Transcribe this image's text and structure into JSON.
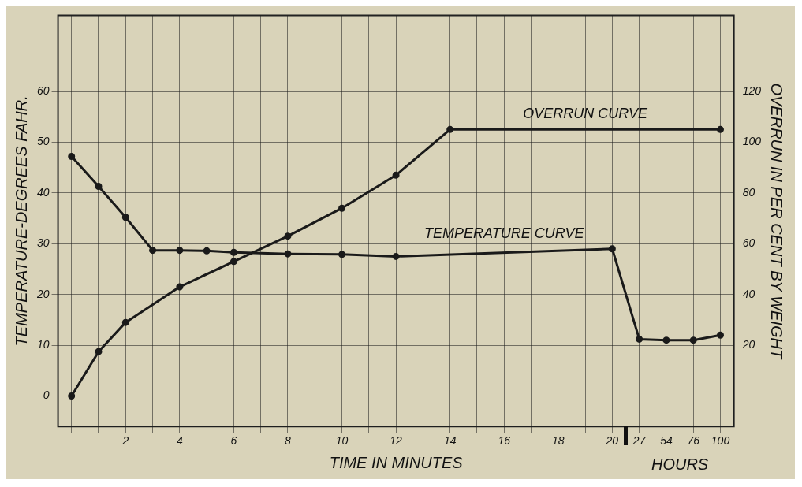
{
  "chart_data": {
    "type": "line",
    "xlabel": "TIME IN MINUTES",
    "ylabel": "TEMPERATURE-DEGREES FAHR.",
    "y2label": "OVERRUN IN PER CENT BY WEIGHT",
    "annotations": [
      "HOURS"
    ],
    "categories": [
      null,
      null,
      "2",
      null,
      "4",
      null,
      "6",
      null,
      "8",
      null,
      "10",
      null,
      "12",
      null,
      "14",
      null,
      "16",
      null,
      "18",
      null,
      "20",
      "27",
      "54",
      "76",
      "100"
    ],
    "ylim": [
      -6,
      75
    ],
    "yticks": [
      0,
      10,
      20,
      30,
      40,
      50,
      60
    ],
    "y2lim": [
      -12,
      150
    ],
    "y2ticks": [
      20,
      40,
      60,
      80,
      100,
      120
    ],
    "grid": true,
    "legend": false,
    "marker": "circle",
    "line_style": "solid",
    "series": [
      {
        "name": "TEMPERATURE CURVE",
        "color": "#1a1a1a",
        "values": [
          47.2,
          41.3,
          35.2,
          28.7,
          28.7,
          28.6,
          28.3,
          null,
          28,
          null,
          27.9,
          null,
          27.5,
          null,
          null,
          null,
          null,
          null,
          null,
          null,
          29,
          11.2,
          11,
          11,
          12
        ]
      },
      {
        "name": "OVERRUN CURVE",
        "color": "#1a1a1a",
        "axis": "y2",
        "values": [
          0,
          17.5,
          29,
          null,
          43,
          null,
          53,
          null,
          63,
          null,
          74,
          null,
          87,
          null,
          105,
          null,
          null,
          null,
          null,
          null,
          null,
          null,
          null,
          null,
          105
        ]
      }
    ]
  }
}
